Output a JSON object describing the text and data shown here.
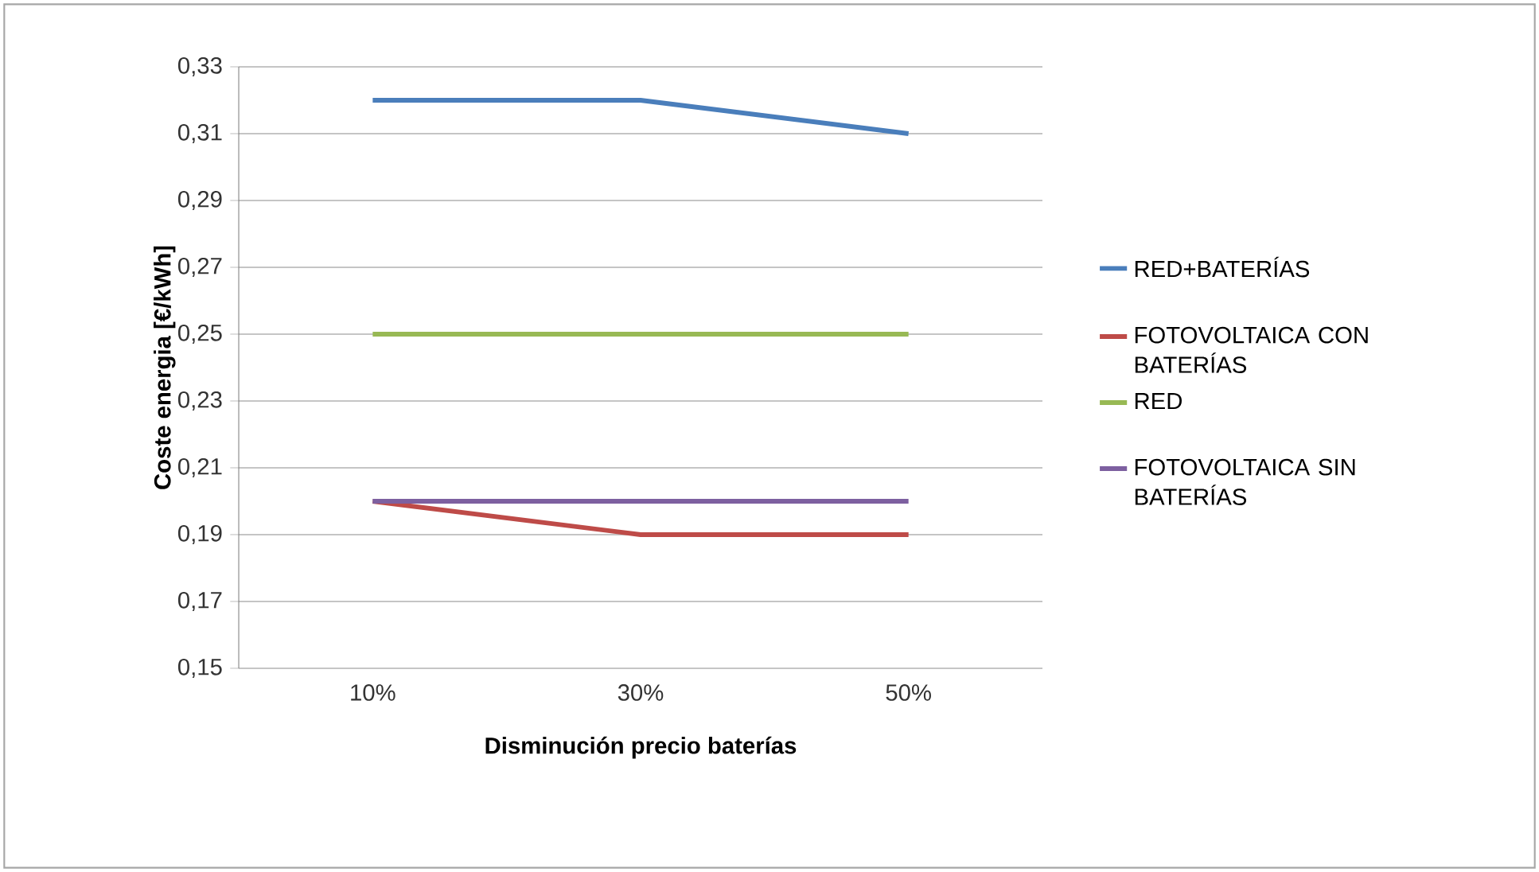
{
  "chart_data": {
    "type": "line",
    "xlabel": "Disminución precio baterías",
    "ylabel": "Coste energia [€/kWh]",
    "categories": [
      "10%",
      "30%",
      "50%"
    ],
    "series": [
      {
        "name": "RED+BATERÍAS",
        "color": "#4a7ebb",
        "values": [
          0.32,
          0.32,
          0.31
        ]
      },
      {
        "name": "FOTOVOLTAICA CON BATERÍAS",
        "color": "#be4b48",
        "values": [
          0.2,
          0.19,
          0.19
        ]
      },
      {
        "name": "RED",
        "color": "#98b954",
        "values": [
          0.25,
          0.25,
          0.25
        ]
      },
      {
        "name": "FOTOVOLTAICA SIN BATERÍAS",
        "color": "#7d60a0",
        "values": [
          0.2,
          0.2,
          0.2
        ]
      }
    ],
    "ylim": [
      0.15,
      0.33
    ],
    "yticks": [
      {
        "value": 0.15,
        "label": "0,15"
      },
      {
        "value": 0.17,
        "label": "0,17"
      },
      {
        "value": 0.19,
        "label": "0,19"
      },
      {
        "value": 0.21,
        "label": "0,21"
      },
      {
        "value": 0.23,
        "label": "0,23"
      },
      {
        "value": 0.25,
        "label": "0,25"
      },
      {
        "value": 0.27,
        "label": "0,27"
      },
      {
        "value": 0.29,
        "label": "0,29"
      },
      {
        "value": 0.31,
        "label": "0,31"
      },
      {
        "value": 0.33,
        "label": "0,33"
      }
    ],
    "grid": "y",
    "legend": "right",
    "marker": "none",
    "line_style": "solid"
  }
}
